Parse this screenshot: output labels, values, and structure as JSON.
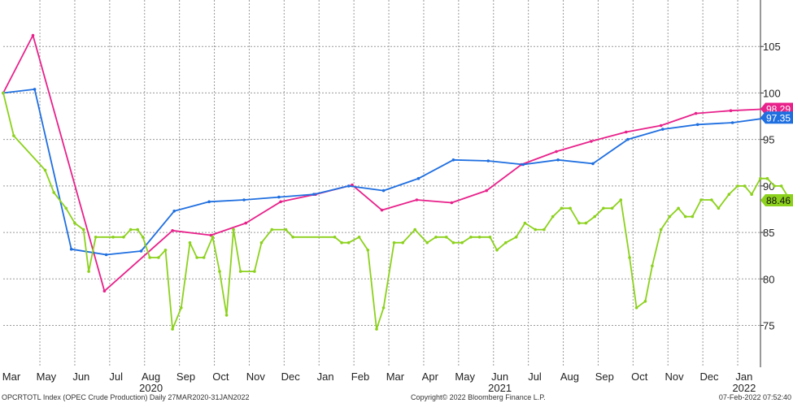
{
  "chart_data": {
    "type": "line",
    "x_labels": [
      "Mar",
      "May",
      "Jun",
      "Jul",
      "Aug",
      "Sep",
      "Oct",
      "Nov",
      "Dec",
      "Jan",
      "Feb",
      "Mar",
      "Apr",
      "May",
      "Jun",
      "Jul",
      "Aug",
      "Sep",
      "Oct",
      "Nov",
      "Dec",
      "Jan"
    ],
    "year_labels": [
      {
        "text": "2020",
        "month_index": 4
      },
      {
        "text": "2021",
        "month_index": 14
      },
      {
        "text": "2022",
        "month_index": 21
      }
    ],
    "y_ticks": [
      75,
      80,
      85,
      90,
      95,
      100,
      105
    ],
    "ylim": [
      70.5,
      110
    ],
    "grid": true,
    "series": [
      {
        "color": "#e8218b",
        "last_value_label": "98.29",
        "points": [
          [
            0,
            100
          ],
          [
            0.85,
            106.2
          ],
          [
            2.9,
            78.7
          ],
          [
            4.85,
            85.2
          ],
          [
            5.95,
            84.7
          ],
          [
            6.95,
            86.0
          ],
          [
            7.95,
            88.3
          ],
          [
            8.95,
            89.1
          ],
          [
            10,
            90.1
          ],
          [
            10.85,
            87.4
          ],
          [
            11.85,
            88.5
          ],
          [
            12.85,
            88.2
          ],
          [
            13.85,
            89.5
          ],
          [
            14.85,
            92.3
          ],
          [
            15.85,
            93.7
          ],
          [
            16.85,
            94.8
          ],
          [
            17.85,
            95.8
          ],
          [
            18.85,
            96.5
          ],
          [
            19.85,
            97.8
          ],
          [
            20.85,
            98.1
          ],
          [
            21.95,
            98.29
          ]
        ]
      },
      {
        "color": "#1f6fe0",
        "last_value_label": "97.35",
        "points": [
          [
            0,
            100
          ],
          [
            0.9,
            100.4
          ],
          [
            1.95,
            83.2
          ],
          [
            2.95,
            82.6
          ],
          [
            3.95,
            83.0
          ],
          [
            4.9,
            87.3
          ],
          [
            5.9,
            88.3
          ],
          [
            6.9,
            88.5
          ],
          [
            7.9,
            88.8
          ],
          [
            8.9,
            89.1
          ],
          [
            9.9,
            90.0
          ],
          [
            10.9,
            89.5
          ],
          [
            11.9,
            90.8
          ],
          [
            12.9,
            92.8
          ],
          [
            13.9,
            92.7
          ],
          [
            14.9,
            92.3
          ],
          [
            15.9,
            92.8
          ],
          [
            16.9,
            92.4
          ],
          [
            17.9,
            95.0
          ],
          [
            18.9,
            96.1
          ],
          [
            19.9,
            96.6
          ],
          [
            20.9,
            96.8
          ],
          [
            21.95,
            97.35
          ]
        ]
      },
      {
        "color": "#8cd11c",
        "last_value_label": "88.46",
        "points": [
          [
            0,
            100
          ],
          [
            0.3,
            95.4
          ],
          [
            1.2,
            91.7
          ],
          [
            1.45,
            89.3
          ],
          [
            1.8,
            87.6
          ],
          [
            2.05,
            86.0
          ],
          [
            2.3,
            85.3
          ],
          [
            2.45,
            80.8
          ],
          [
            2.65,
            84.5
          ],
          [
            3.15,
            84.5
          ],
          [
            3.45,
            84.5
          ],
          [
            3.65,
            85.3
          ],
          [
            3.85,
            85.3
          ],
          [
            4.0,
            84.5
          ],
          [
            4.2,
            82.3
          ],
          [
            4.45,
            82.3
          ],
          [
            4.65,
            83.1
          ],
          [
            4.85,
            74.6
          ],
          [
            5.1,
            76.9
          ],
          [
            5.35,
            83.9
          ],
          [
            5.55,
            82.3
          ],
          [
            5.75,
            82.3
          ],
          [
            6.0,
            84.5
          ],
          [
            6.2,
            80.8
          ],
          [
            6.4,
            76.1
          ],
          [
            6.6,
            85.3
          ],
          [
            6.8,
            80.8
          ],
          [
            7.2,
            80.8
          ],
          [
            7.4,
            83.9
          ],
          [
            7.7,
            85.3
          ],
          [
            8.1,
            85.3
          ],
          [
            8.3,
            84.5
          ],
          [
            9.5,
            84.5
          ],
          [
            9.7,
            83.9
          ],
          [
            9.9,
            83.9
          ],
          [
            10.2,
            84.5
          ],
          [
            10.45,
            83.1
          ],
          [
            10.7,
            74.6
          ],
          [
            10.9,
            76.9
          ],
          [
            11.2,
            83.9
          ],
          [
            11.45,
            83.9
          ],
          [
            11.8,
            85.3
          ],
          [
            12.15,
            83.9
          ],
          [
            12.4,
            84.5
          ],
          [
            12.7,
            84.5
          ],
          [
            12.9,
            83.9
          ],
          [
            13.15,
            83.9
          ],
          [
            13.4,
            84.5
          ],
          [
            13.65,
            84.5
          ],
          [
            13.95,
            84.5
          ],
          [
            14.15,
            83.1
          ],
          [
            14.4,
            83.9
          ],
          [
            14.7,
            84.5
          ],
          [
            14.95,
            86.0
          ],
          [
            15.25,
            85.3
          ],
          [
            15.5,
            85.3
          ],
          [
            15.75,
            86.7
          ],
          [
            16.0,
            87.6
          ],
          [
            16.25,
            87.6
          ],
          [
            16.5,
            86.0
          ],
          [
            16.7,
            86.0
          ],
          [
            16.95,
            86.7
          ],
          [
            17.2,
            87.6
          ],
          [
            17.45,
            87.6
          ],
          [
            17.7,
            88.5
          ],
          [
            17.95,
            82.3
          ],
          [
            18.15,
            76.9
          ],
          [
            18.4,
            77.6
          ],
          [
            18.6,
            81.4
          ],
          [
            18.85,
            85.3
          ],
          [
            19.1,
            86.7
          ],
          [
            19.35,
            87.6
          ],
          [
            19.55,
            86.7
          ],
          [
            19.75,
            86.7
          ],
          [
            20.0,
            88.5
          ],
          [
            20.3,
            88.5
          ],
          [
            20.5,
            87.6
          ],
          [
            20.8,
            89.1
          ],
          [
            21.05,
            90.0
          ],
          [
            21.25,
            90.0
          ],
          [
            21.45,
            89.1
          ],
          [
            21.7,
            90.8
          ],
          [
            21.9,
            90.8
          ],
          [
            22.1,
            90.0
          ],
          [
            22.3,
            90.0
          ],
          [
            22.55,
            88.46
          ]
        ]
      }
    ],
    "footer": {
      "left": "OPCRTOTL Index (OPEC Crude Production)  Daily 27MAR2020-31JAN2022",
      "center": "Copyright© 2022 Bloomberg Finance L.P.",
      "right": "07-Feb-2022 07:52:40"
    }
  }
}
